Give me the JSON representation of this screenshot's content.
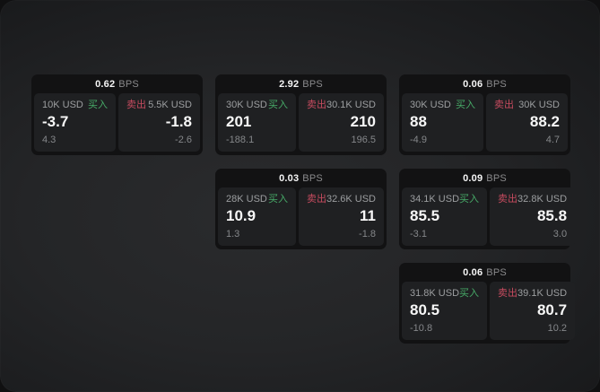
{
  "labels": {
    "bps": "BPS",
    "buy": "买入",
    "sell": "卖出"
  },
  "colors": {
    "buy_green": "#47ab68",
    "sell_red": "#c74b5f",
    "card_bg": "#121213",
    "panel_bg": "#1f2022",
    "window_bg": "#242527",
    "value_text": "#f7f7f7",
    "muted_text": "#8b8b8d"
  },
  "cards": [
    {
      "bps": "0.62",
      "buy": {
        "amount": "10K USD",
        "value": "-3.7",
        "sub": "4.3"
      },
      "sell": {
        "amount": "5.5K USD",
        "value": "-1.8",
        "sub": "-2.6"
      }
    },
    {
      "bps": "2.92",
      "buy": {
        "amount": "30K USD",
        "value": "201",
        "sub": "-188.1"
      },
      "sell": {
        "amount": "30.1K USD",
        "value": "210",
        "sub": "196.5"
      }
    },
    {
      "bps": "0.06",
      "buy": {
        "amount": "30K USD",
        "value": "88",
        "sub": "-4.9"
      },
      "sell": {
        "amount": "30K USD",
        "value": "88.2",
        "sub": "4.7"
      }
    },
    {
      "bps": "0.03",
      "buy": {
        "amount": "28K USD",
        "value": "10.9",
        "sub": "1.3"
      },
      "sell": {
        "amount": "32.6K USD",
        "value": "11",
        "sub": "-1.8"
      }
    },
    {
      "bps": "0.09",
      "buy": {
        "amount": "34.1K USD",
        "value": "85.5",
        "sub": "-3.1"
      },
      "sell": {
        "amount": "32.8K USD",
        "value": "85.8",
        "sub": "3.0"
      }
    },
    {
      "bps": "0.06",
      "buy": {
        "amount": "31.8K USD",
        "value": "80.5",
        "sub": "-10.8"
      },
      "sell": {
        "amount": "39.1K USD",
        "value": "80.7",
        "sub": "10.2"
      }
    }
  ]
}
